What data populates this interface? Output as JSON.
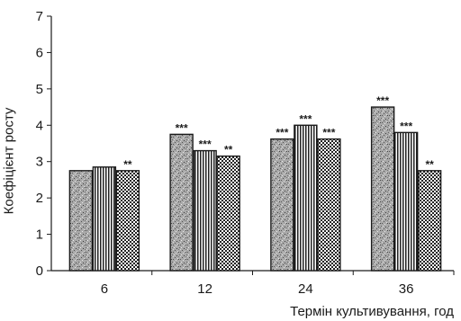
{
  "chart_data": {
    "type": "bar",
    "title": "",
    "xlabel": "Термін культивування, год",
    "ylabel": "Коефіцієнт росту",
    "ylim": [
      0,
      7
    ],
    "yticks": [
      "0",
      "1",
      "2",
      "3",
      "4",
      "5",
      "6",
      "7"
    ],
    "categories": [
      "6",
      "12",
      "24",
      "36"
    ],
    "series": [
      {
        "pattern": "granite",
        "values": [
          2.75,
          3.75,
          3.62,
          4.5
        ],
        "labels": [
          "",
          "***",
          "***",
          "***"
        ]
      },
      {
        "pattern": "vertical-stripes",
        "values": [
          2.85,
          3.3,
          4.0,
          3.8
        ],
        "labels": [
          "",
          "***",
          "***",
          "***"
        ]
      },
      {
        "pattern": "checkerboard",
        "values": [
          2.75,
          3.15,
          3.62,
          2.75
        ],
        "labels": [
          "**",
          "**",
          "***",
          "**"
        ]
      }
    ],
    "grid": false,
    "colors": {
      "axis": "#1a1a1a",
      "bar_outline": "#1a1a1a"
    }
  }
}
